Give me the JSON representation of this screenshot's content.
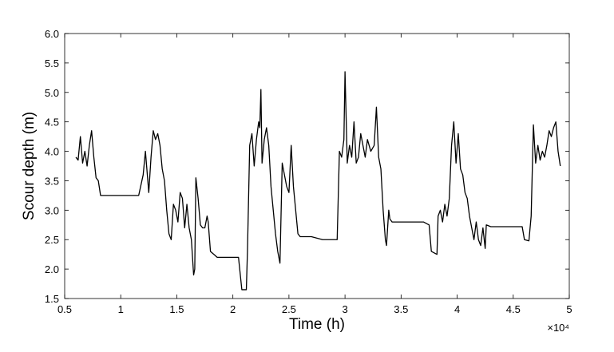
{
  "chart_data": {
    "type": "line",
    "x_label": "Time (h)",
    "y_label": "Scour depth (m)",
    "x_multiplier": "×10⁴",
    "xlim": [
      5000,
      50000
    ],
    "ylim": [
      1.5,
      6
    ],
    "xticks": [
      {
        "value": 5000,
        "label": "0.5"
      },
      {
        "value": 10000,
        "label": "1"
      },
      {
        "value": 15000,
        "label": "1.5"
      },
      {
        "value": 20000,
        "label": "2"
      },
      {
        "value": 25000,
        "label": "2.5"
      },
      {
        "value": 30000,
        "label": "3"
      },
      {
        "value": 35000,
        "label": "3.5"
      },
      {
        "value": 40000,
        "label": "4"
      },
      {
        "value": 45000,
        "label": "4.5"
      },
      {
        "value": 50000,
        "label": "5"
      }
    ],
    "yticks": [
      {
        "value": 1.5,
        "label": "1.5"
      },
      {
        "value": 2,
        "label": "2.0"
      },
      2.5,
      {
        "value": 3,
        "label": "3.0"
      },
      3.5,
      {
        "value": 4,
        "label": "4.0"
      },
      4.5,
      {
        "value": 5,
        "label": "5.0"
      },
      5.5,
      {
        "value": 6,
        "label": "6.0"
      }
    ],
    "x": [
      6000,
      6200,
      6400,
      6600,
      6800,
      7000,
      7200,
      7400,
      7600,
      7800,
      8000,
      8200,
      9000,
      10000,
      11000,
      11600,
      12000,
      12200,
      12500,
      12700,
      12900,
      13100,
      13300,
      13500,
      13700,
      13900,
      14100,
      14300,
      14500,
      14700,
      14900,
      15100,
      15300,
      15500,
      15700,
      15900,
      16100,
      16300,
      16500,
      16600,
      16700,
      16900,
      17100,
      17300,
      17500,
      17700,
      17800,
      18000,
      18300,
      18600,
      19000,
      19500,
      20000,
      20500,
      20800,
      21200,
      21300,
      21500,
      21700,
      21900,
      22100,
      22300,
      22400,
      22500,
      22600,
      22800,
      23000,
      23200,
      23400,
      23600,
      23800,
      24000,
      24200,
      24400,
      24600,
      24800,
      25000,
      25200,
      25400,
      25600,
      25800,
      26000,
      27000,
      28000,
      29000,
      29300,
      29500,
      29700,
      29900,
      30000,
      30200,
      30400,
      30600,
      30800,
      31000,
      31200,
      31400,
      31600,
      31800,
      32000,
      32300,
      32600,
      32800,
      33000,
      33200,
      33400,
      33600,
      33700,
      33900,
      34000,
      34200,
      35000,
      36000,
      37000,
      37500,
      37700,
      38200,
      38300,
      38500,
      38700,
      38900,
      39100,
      39300,
      39500,
      39700,
      39900,
      40100,
      40300,
      40500,
      40700,
      40900,
      41100,
      41300,
      41500,
      41700,
      41900,
      42100,
      42300,
      42500,
      42600,
      43000,
      44000,
      45000,
      45800,
      46000,
      46400,
      46600,
      46800,
      47000,
      47200,
      47400,
      47600,
      47800,
      48000,
      48200,
      48400,
      48600,
      48800,
      49000,
      49200
    ],
    "series": [
      {
        "color": "#000000",
        "values": [
          3.9,
          3.85,
          4.25,
          3.8,
          4.0,
          3.75,
          4.1,
          4.35,
          3.9,
          3.55,
          3.5,
          3.25,
          3.25,
          3.25,
          3.25,
          3.25,
          3.6,
          4.0,
          3.3,
          3.9,
          4.35,
          4.2,
          4.3,
          4.1,
          3.7,
          3.5,
          3.0,
          2.6,
          2.5,
          3.1,
          3.0,
          2.8,
          3.3,
          3.2,
          2.7,
          3.1,
          2.7,
          2.5,
          1.9,
          2.0,
          3.55,
          3.2,
          2.75,
          2.7,
          2.7,
          2.9,
          2.8,
          2.3,
          2.25,
          2.2,
          2.2,
          2.2,
          2.2,
          2.2,
          1.65,
          1.65,
          2.3,
          4.1,
          4.3,
          3.75,
          4.2,
          4.5,
          4.4,
          5.05,
          3.8,
          4.2,
          4.4,
          4.1,
          3.4,
          3.0,
          2.6,
          2.3,
          2.1,
          3.8,
          3.6,
          3.4,
          3.3,
          4.1,
          3.4,
          3.0,
          2.6,
          2.55,
          2.55,
          2.5,
          2.5,
          2.5,
          4.0,
          3.9,
          4.2,
          5.35,
          3.8,
          4.1,
          3.9,
          4.5,
          3.8,
          3.9,
          4.3,
          4.1,
          3.9,
          4.2,
          4.0,
          4.1,
          4.75,
          3.9,
          3.7,
          3.0,
          2.5,
          2.4,
          3.0,
          2.85,
          2.8,
          2.8,
          2.8,
          2.8,
          2.75,
          2.3,
          2.25,
          2.9,
          3.0,
          2.8,
          3.1,
          2.9,
          3.2,
          4.1,
          4.5,
          3.8,
          4.3,
          3.7,
          3.6,
          3.3,
          3.2,
          2.9,
          2.7,
          2.5,
          2.8,
          2.5,
          2.4,
          2.7,
          2.35,
          2.75,
          2.72,
          2.72,
          2.72,
          2.72,
          2.5,
          2.48,
          2.9,
          4.45,
          3.8,
          4.1,
          3.85,
          4.0,
          3.9,
          4.1,
          4.35,
          4.25,
          4.4,
          4.5,
          4.0,
          3.75
        ]
      }
    ]
  }
}
